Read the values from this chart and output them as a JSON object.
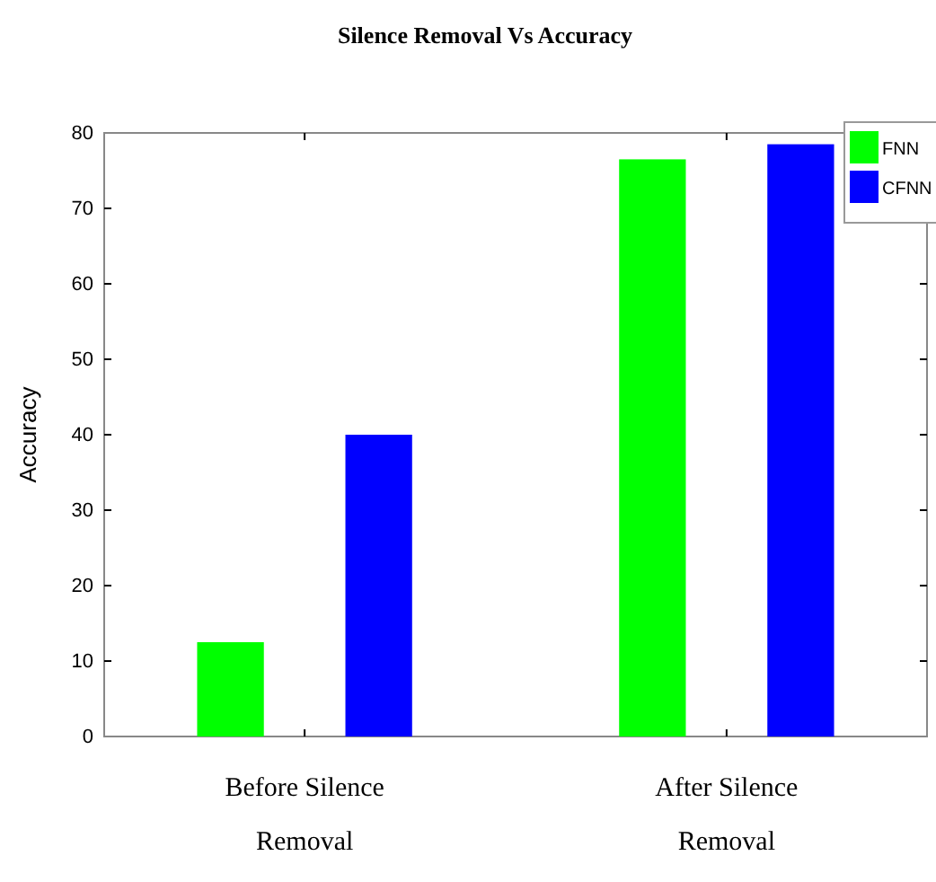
{
  "chart_data": {
    "type": "bar",
    "title": "Silence Removal Vs Accuracy",
    "ylabel": "Accuracy",
    "categories": [
      "Before Silence Removal",
      "After Silence Removal"
    ],
    "series": [
      {
        "name": "FNN",
        "color": "#00ff00",
        "values": [
          12.5,
          76.5
        ]
      },
      {
        "name": "CFNN",
        "color": "#0000ff",
        "values": [
          40,
          78.5
        ]
      }
    ],
    "ylim": [
      0,
      80
    ],
    "yticks": [
      0,
      10,
      20,
      30,
      40,
      50,
      60,
      70,
      80
    ],
    "legend": "top right",
    "grid": false
  }
}
